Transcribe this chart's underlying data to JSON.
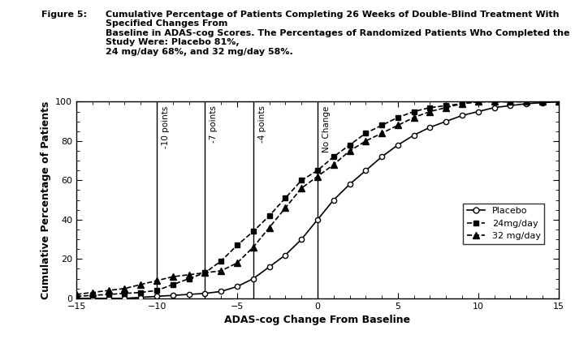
{
  "title_label": "Figure 5:",
  "title_text": "Cumulative Percentage of Patients Completing 26 Weeks of Double-Blind Treatment With Specified Changes From\nBaseline in ADAS-cog Scores. The Percentages of Randomized Patients Who Completed the Study Were: Placebo 81%,\n24 mg/day 68%, and 32 mg/day 58%.",
  "xlabel": "ADAS-cog Change From Baseline",
  "ylabel": "Cumulative Percentage of Patients",
  "xlim": [
    -15,
    15
  ],
  "ylim": [
    0,
    100
  ],
  "xticks": [
    -15,
    -10,
    -5,
    0,
    5,
    10,
    15
  ],
  "yticks": [
    0,
    20,
    40,
    60,
    80,
    100
  ],
  "vlines": [
    -10,
    -7,
    -4,
    0
  ],
  "vline_labels": [
    "-10 points",
    "-7 points",
    "-4 points",
    "No Change"
  ],
  "placebo_x": [
    -15,
    -14,
    -13,
    -12,
    -11,
    -10,
    -9,
    -8,
    -7,
    -6,
    -5,
    -4,
    -3,
    -2,
    -1,
    0,
    1,
    2,
    3,
    4,
    5,
    6,
    7,
    8,
    9,
    10,
    11,
    12,
    13,
    14,
    15
  ],
  "placebo_y": [
    0,
    0,
    0,
    0,
    0.5,
    1,
    1.5,
    2,
    2.5,
    3.5,
    6,
    10,
    16,
    22,
    30,
    40,
    50,
    58,
    65,
    72,
    78,
    83,
    87,
    90,
    93,
    95,
    97,
    98,
    99,
    99.5,
    100
  ],
  "drug24_x": [
    -15,
    -14,
    -13,
    -12,
    -11,
    -10,
    -9,
    -8,
    -7,
    -6,
    -5,
    -4,
    -3,
    -2,
    -1,
    0,
    1,
    2,
    3,
    4,
    5,
    6,
    7,
    8,
    9,
    10,
    11,
    12,
    13,
    14,
    15
  ],
  "drug24_y": [
    1,
    1.5,
    2,
    2.5,
    3,
    4,
    7,
    10,
    13,
    19,
    27,
    34,
    42,
    51,
    60,
    65,
    72,
    78,
    84,
    88,
    92,
    95,
    97,
    98,
    99,
    100,
    100,
    100,
    100,
    100,
    100
  ],
  "drug32_x": [
    -15,
    -14,
    -13,
    -12,
    -11,
    -10,
    -9,
    -8,
    -7,
    -6,
    -5,
    -4,
    -3,
    -2,
    -1,
    0,
    1,
    2,
    3,
    4,
    5,
    6,
    7,
    8,
    9,
    10,
    11,
    12,
    13,
    14,
    15
  ],
  "drug32_y": [
    2,
    3,
    4,
    5,
    7,
    9,
    11,
    12,
    13,
    14,
    18,
    26,
    36,
    46,
    56,
    62,
    68,
    75,
    80,
    84,
    88,
    92,
    95,
    97,
    99,
    100,
    100,
    100,
    100,
    100,
    100
  ],
  "legend_labels": [
    "Placebo",
    "24mg/day",
    "32 mg/day"
  ],
  "line_color": "#000000",
  "background_color": "#ffffff"
}
